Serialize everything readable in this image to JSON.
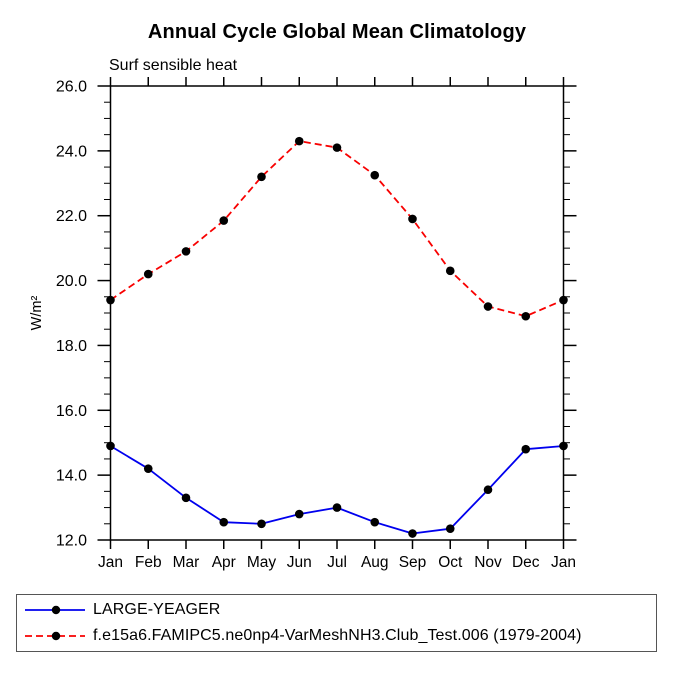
{
  "page": {
    "background": "#ffffff"
  },
  "chart_data": {
    "type": "line",
    "title": "Annual Cycle Global Mean Climatology",
    "subtitle": "Surf sensible heat",
    "ylabel": "W/m²",
    "xlabel": "",
    "categories": [
      "Jan",
      "Feb",
      "Mar",
      "Apr",
      "May",
      "Jun",
      "Jul",
      "Aug",
      "Sep",
      "Oct",
      "Nov",
      "Dec",
      "Jan"
    ],
    "ylim": [
      12.0,
      26.0
    ],
    "ytick_major_interval": 2.0,
    "ytick_minor_interval": 0.5,
    "yticks": [
      {
        "value": 26.0,
        "label": "26.0"
      },
      {
        "value": 24.0,
        "label": "24.0"
      },
      {
        "value": 22.0,
        "label": "22.0"
      },
      {
        "value": 20.0,
        "label": "20.0"
      },
      {
        "value": 18.0,
        "label": "18.0"
      },
      {
        "value": 16.0,
        "label": "16.0"
      },
      {
        "value": 14.0,
        "label": "14.0"
      },
      {
        "value": 12.0,
        "label": "12.0"
      }
    ],
    "grid": false,
    "legend_position": "bottom-left-box",
    "axis_color": "#000000",
    "marker_color": "#000000",
    "series": [
      {
        "name": "LARGE-YEAGER",
        "color": "#0000ee",
        "style": "solid",
        "marker": "filled-circle",
        "values": [
          14.9,
          14.2,
          13.3,
          12.55,
          12.5,
          12.8,
          13.0,
          12.55,
          12.2,
          12.35,
          13.55,
          14.8,
          14.9
        ]
      },
      {
        "name": "f.e15a6.FAMIPC5.ne0np4-VarMeshNH3.Club_Test.006 (1979-2004)",
        "color": "#f80000",
        "style": "dashed",
        "marker": "filled-circle",
        "values": [
          19.4,
          20.2,
          20.9,
          21.85,
          23.2,
          24.3,
          24.1,
          23.25,
          21.9,
          20.3,
          19.2,
          18.9,
          19.4
        ]
      }
    ]
  }
}
